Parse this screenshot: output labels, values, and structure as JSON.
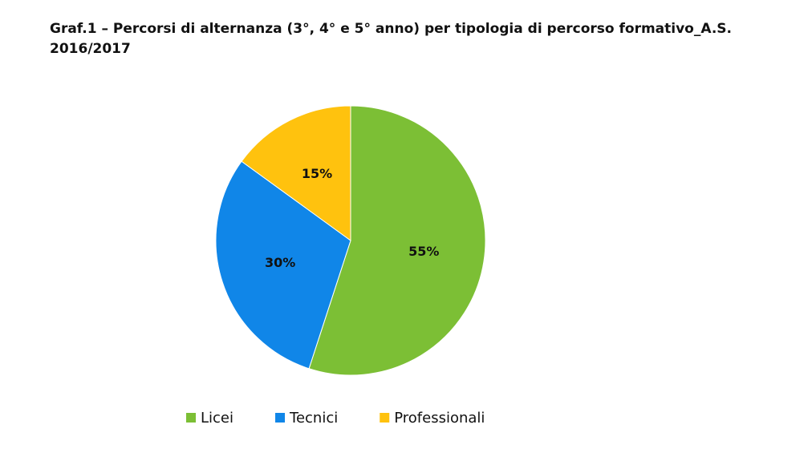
{
  "chart_data": {
    "type": "pie",
    "title": "Graf.1 – Percorsi di alternanza (3°, 4° e 5° anno) per tipologia di percorso formativo_A.S. 2016/2017",
    "categories": [
      "Licei",
      "Tecnici",
      "Professionali"
    ],
    "values": [
      55,
      30,
      15
    ],
    "value_labels": [
      "55%",
      "30%",
      "15%"
    ],
    "colors": [
      "#7cbf35",
      "#1086e8",
      "#ffc20e"
    ]
  }
}
